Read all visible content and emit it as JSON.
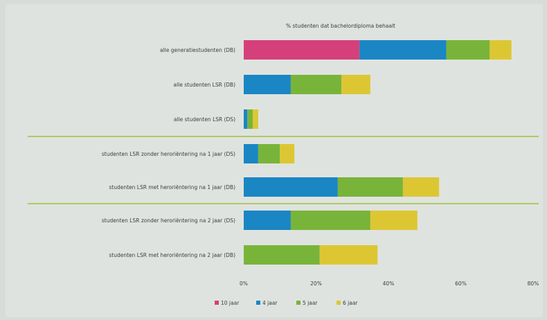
{
  "chart_data": {
    "type": "bar",
    "orientation": "horizontal",
    "stacked": true,
    "title": "% studenten dat bachelordiploma behaalt",
    "categories": [
      "alle generatiestudenten (DB)",
      "alle studenten LSR (DB)",
      "alle studenten LSR (DS)",
      "studenten LSR zonder heroriëntering na 1 jaar (DS)",
      "studenten LSR met heroriëntering na 1 jaar (DB)",
      "studenten LSR zonder heroriëntering na 2 jaar (DS)",
      "studenten LSR met heroriëntering na 2 jaar (DB)"
    ],
    "series": [
      {
        "name": "10 jaar",
        "color": "#d6407a",
        "values": [
          32,
          0,
          0,
          0,
          0,
          0,
          0
        ]
      },
      {
        "name": "4 jaar",
        "color": "#1a86c4",
        "values": [
          24,
          13,
          1,
          4,
          26,
          13,
          0
        ]
      },
      {
        "name": "5 jaar",
        "color": "#79b43a",
        "values": [
          12,
          14,
          1.5,
          6,
          18,
          22,
          21
        ]
      },
      {
        "name": "6 jaar",
        "color": "#dcc733",
        "values": [
          6,
          8,
          1.5,
          4,
          10,
          13,
          16
        ]
      }
    ],
    "xlim": [
      0,
      80
    ],
    "ticks": [
      "0%",
      "20%",
      "40%",
      "60%",
      "80%"
    ],
    "grid": false,
    "legend_position": "bottom-center",
    "group_separators_after": [
      2,
      4
    ]
  }
}
